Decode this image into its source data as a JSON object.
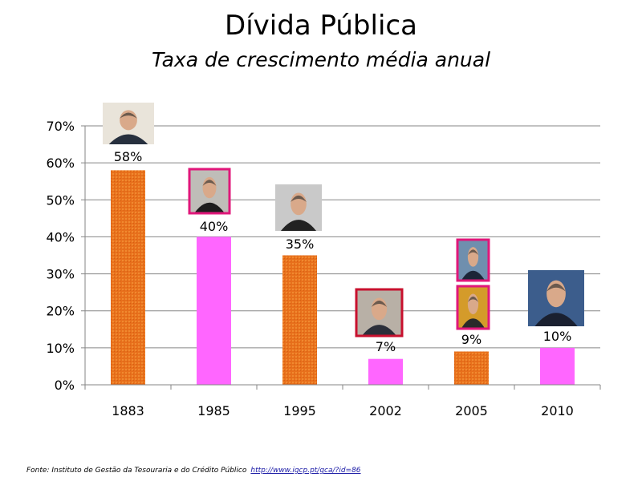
{
  "chart_data": {
    "type": "bar",
    "title": "Dívida Pública",
    "subtitle": "Taxa de crescimento média anual",
    "categories": [
      "1883",
      "1985",
      "1995",
      "2002",
      "2005",
      "2010"
    ],
    "values": [
      58,
      40,
      35,
      7,
      9,
      10
    ],
    "value_labels": [
      "58%",
      "40%",
      "35%",
      "7%",
      "9%",
      "10%"
    ],
    "bar_colors": [
      "#e8701c",
      "#ff66ff",
      "#e8701c",
      "#ff66ff",
      "#e8701c",
      "#ff66ff"
    ],
    "ylim": [
      0,
      70
    ],
    "yticks": [
      "0%",
      "10%",
      "20%",
      "30%",
      "40%",
      "50%",
      "60%",
      "70%"
    ],
    "grid": true,
    "xlabel": "",
    "ylabel": ""
  },
  "source": {
    "text": "Fonte: Instituto de Gestão da Tesouraria e do Crédito Público",
    "link": "http://www.igcp.pt/gca/?id=86"
  }
}
